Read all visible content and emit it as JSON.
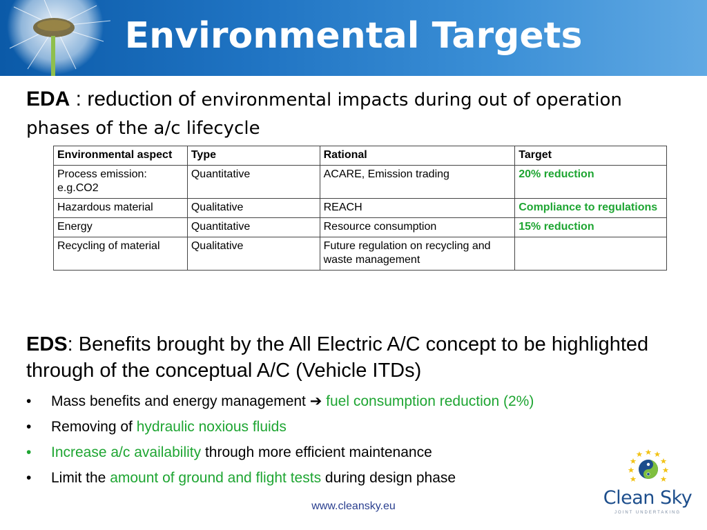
{
  "slide": {
    "title": "Environmental Targets"
  },
  "eda": {
    "label": "EDA",
    "sep": " : reduction of ",
    "text": "environmental impacts during out of operation phases of the a/c lifecycle"
  },
  "table": {
    "headers": [
      "Environmental aspect",
      "Type",
      "Rational",
      "Target"
    ],
    "rows": [
      [
        "Process emission: e.g.CO2",
        "Quantitative",
        "ACARE, Emission trading",
        "20% reduction"
      ],
      [
        "Hazardous material",
        "Qualitative",
        "REACH",
        "Compliance to regulations"
      ],
      [
        "Energy",
        "Quantitative",
        "Resource consumption",
        "15% reduction"
      ],
      [
        "Recycling of material",
        "Qualitative",
        "Future regulation on recycling and waste management",
        ""
      ]
    ]
  },
  "eds": {
    "label": "EDS",
    "text": ": Benefits brought by the All Electric A/C concept to be highlighted through of the conceptual A/C (Vehicle ITDs)"
  },
  "bullets": [
    {
      "dot": "•",
      "dot_green": false,
      "parts": [
        {
          "text": "Mass benefits and energy management ",
          "green": false
        },
        {
          "text": "➔ ",
          "green": false
        },
        {
          "text": "fuel consumption reduction (2%)",
          "green": true
        }
      ]
    },
    {
      "dot": "•",
      "dot_green": false,
      "parts": [
        {
          "text": "Removing of ",
          "green": false
        },
        {
          "text": "hydraulic noxious fluids",
          "green": true
        }
      ]
    },
    {
      "dot": "•",
      "dot_green": true,
      "parts": [
        {
          "text": "Increase a/c availability",
          "green": true
        },
        {
          "text": " through more efficient maintenance",
          "green": false
        }
      ]
    },
    {
      "dot": "•",
      "dot_green": false,
      "parts": [
        {
          "text": "Limit the ",
          "green": false
        },
        {
          "text": "amount of ground and flight tests",
          "green": true
        },
        {
          "text": " during design phase",
          "green": false
        }
      ]
    }
  ],
  "footer": {
    "url": "www.cleansky.eu"
  },
  "logo": {
    "brand": "Clean Sky",
    "tagline": "JOINT UNDERTAKING",
    "icon": "clean-sky-logo-icon"
  },
  "colors": {
    "accent_green": "#1ea532",
    "header_blue": "#0b5aa8",
    "link_blue": "#2a3f8f"
  }
}
